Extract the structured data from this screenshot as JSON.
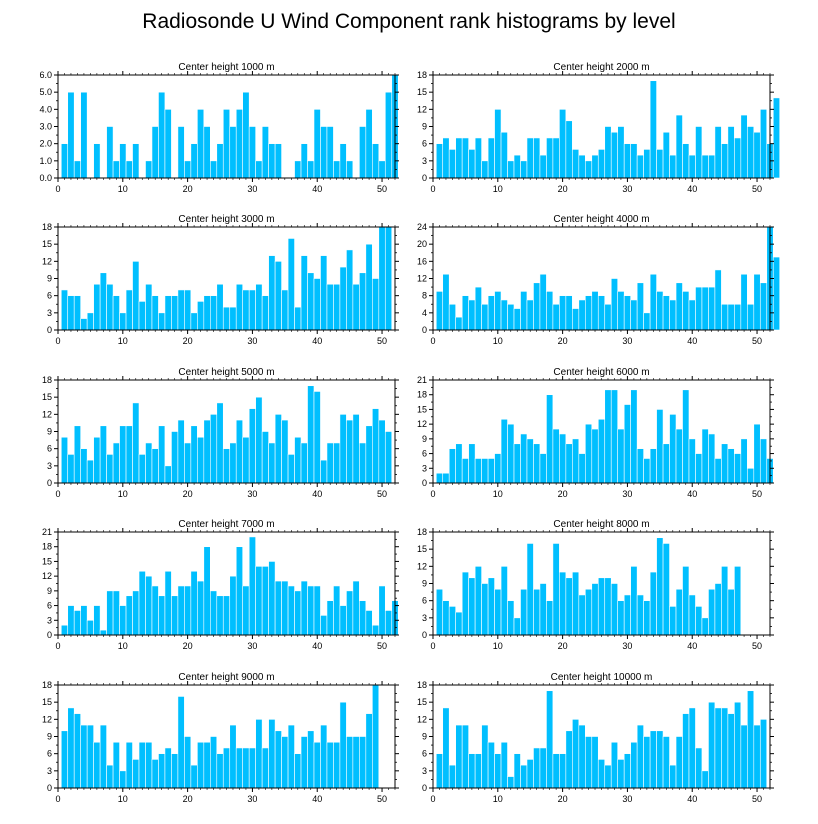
{
  "title": "Radiosonde U Wind Component rank histograms by level",
  "colors": {
    "bar": "#00bfff",
    "bar_edge": "#ffffff",
    "axis": "#000000"
  },
  "chart_data": [
    {
      "type": "bar",
      "title": "Center height 1000 m",
      "xlim": [
        0,
        52
      ],
      "ylim": [
        0,
        6
      ],
      "xticks": [
        0,
        10,
        20,
        30,
        40,
        50
      ],
      "yticks": [
        0,
        1,
        2,
        3,
        4,
        5,
        6
      ],
      "ytick_labels": [
        "0.0",
        "1.0",
        "2.0",
        "3.0",
        "4.0",
        "5.0",
        "6.0"
      ],
      "values": [
        2,
        5,
        1,
        5,
        0,
        2,
        0,
        3,
        1,
        2,
        1,
        2,
        0,
        1,
        3,
        5,
        4,
        0,
        3,
        1,
        2,
        4,
        3,
        1,
        2,
        4,
        3,
        4,
        5,
        3,
        1,
        3,
        2,
        2,
        0,
        0,
        1,
        2,
        1,
        4,
        3,
        3,
        1,
        2,
        1,
        0,
        3,
        4,
        2,
        1,
        5,
        6
      ]
    },
    {
      "type": "bar",
      "title": "Center height 2000 m",
      "xlim": [
        0,
        52
      ],
      "ylim": [
        0,
        18
      ],
      "xticks": [
        0,
        10,
        20,
        30,
        40,
        50
      ],
      "yticks": [
        0,
        3,
        6,
        9,
        12,
        15,
        18
      ],
      "ytick_labels": [
        "0",
        "3",
        "6",
        "9",
        "12",
        "15",
        "18"
      ],
      "values": [
        6,
        7,
        5,
        7,
        7,
        5,
        7,
        3,
        7,
        12,
        8,
        3,
        4,
        3,
        7,
        7,
        4,
        7,
        7,
        12,
        10,
        5,
        4,
        3,
        4,
        5,
        9,
        8,
        9,
        6,
        6,
        4,
        5,
        17,
        5,
        8,
        4,
        11,
        6,
        4,
        9,
        4,
        4,
        9,
        6,
        9,
        7,
        11,
        9,
        8,
        12,
        6,
        14
      ]
    },
    {
      "type": "bar",
      "title": "Center height 3000 m",
      "xlim": [
        0,
        52
      ],
      "ylim": [
        0,
        18
      ],
      "xticks": [
        0,
        10,
        20,
        30,
        40,
        50
      ],
      "yticks": [
        0,
        3,
        6,
        9,
        12,
        15,
        18
      ],
      "ytick_labels": [
        "0",
        "3",
        "6",
        "9",
        "12",
        "15",
        "18"
      ],
      "values": [
        7,
        6,
        6,
        2,
        3,
        8,
        10,
        8,
        6,
        3,
        7,
        12,
        5,
        8,
        6,
        3,
        6,
        6,
        7,
        7,
        3,
        5,
        6,
        6,
        8,
        4,
        4,
        8,
        7,
        7,
        8,
        6,
        13,
        12,
        7,
        16,
        4,
        13,
        10,
        9,
        13,
        8,
        8,
        11,
        14,
        8,
        10,
        15,
        9,
        18,
        18
      ]
    },
    {
      "type": "bar",
      "title": "Center height 4000 m",
      "xlim": [
        0,
        52
      ],
      "ylim": [
        0,
        24
      ],
      "xticks": [
        0,
        10,
        20,
        30,
        40,
        50
      ],
      "yticks": [
        0,
        4,
        8,
        12,
        16,
        20,
        24
      ],
      "ytick_labels": [
        "0",
        "4",
        "8",
        "12",
        "16",
        "20",
        "24"
      ],
      "values": [
        9,
        13,
        6,
        3,
        8,
        7,
        10,
        6,
        8,
        9,
        7,
        6,
        5,
        9,
        7,
        11,
        13,
        9,
        6,
        8,
        8,
        5,
        7,
        8,
        9,
        8,
        6,
        12,
        9,
        8,
        7,
        11,
        4,
        13,
        9,
        8,
        7,
        11,
        9,
        7,
        10,
        10,
        10,
        14,
        6,
        6,
        6,
        13,
        6,
        13,
        11,
        24,
        17
      ]
    },
    {
      "type": "bar",
      "title": "Center height 5000 m",
      "xlim": [
        0,
        52
      ],
      "ylim": [
        0,
        18
      ],
      "xticks": [
        0,
        10,
        20,
        30,
        40,
        50
      ],
      "yticks": [
        0,
        3,
        6,
        9,
        12,
        15,
        18
      ],
      "ytick_labels": [
        "0",
        "3",
        "6",
        "9",
        "12",
        "15",
        "18"
      ],
      "values": [
        8,
        5,
        10,
        6,
        4,
        8,
        10,
        5,
        7,
        10,
        10,
        14,
        5,
        7,
        6,
        10,
        3,
        9,
        11,
        7,
        10,
        8,
        11,
        12,
        14,
        6,
        7,
        11,
        8,
        13,
        15,
        9,
        7,
        12,
        11,
        5,
        8,
        7,
        17,
        16,
        4,
        7,
        7,
        12,
        11,
        12,
        7,
        10,
        13,
        11,
        9
      ]
    },
    {
      "type": "bar",
      "title": "Center height 6000 m",
      "xlim": [
        0,
        52
      ],
      "ylim": [
        0,
        21
      ],
      "xticks": [
        0,
        10,
        20,
        30,
        40,
        50
      ],
      "yticks": [
        0,
        3,
        6,
        9,
        12,
        15,
        18,
        21
      ],
      "ytick_labels": [
        "0",
        "3",
        "6",
        "9",
        "12",
        "15",
        "18",
        "21"
      ],
      "values": [
        2,
        2,
        7,
        8,
        5,
        8,
        5,
        5,
        5,
        6,
        13,
        12,
        8,
        10,
        9,
        8,
        6,
        18,
        11,
        10,
        8,
        9,
        6,
        12,
        11,
        13,
        19,
        19,
        11,
        16,
        19,
        7,
        5,
        7,
        15,
        8,
        14,
        11,
        19,
        9,
        6,
        11,
        10,
        5,
        8,
        7,
        6,
        9,
        3,
        12,
        9,
        5
      ]
    },
    {
      "type": "bar",
      "title": "Center height 7000 m",
      "xlim": [
        0,
        52
      ],
      "ylim": [
        0,
        21
      ],
      "xticks": [
        0,
        10,
        20,
        30,
        40,
        50
      ],
      "yticks": [
        0,
        3,
        6,
        9,
        12,
        15,
        18,
        21
      ],
      "ytick_labels": [
        "0",
        "3",
        "6",
        "9",
        "12",
        "15",
        "18",
        "21"
      ],
      "values": [
        2,
        6,
        5,
        6,
        3,
        6,
        1,
        9,
        9,
        6,
        8,
        9,
        13,
        12,
        10,
        8,
        13,
        8,
        10,
        10,
        13,
        11,
        18,
        9,
        8,
        8,
        12,
        18,
        10,
        20,
        14,
        14,
        15,
        11,
        11,
        10,
        9,
        11,
        10,
        10,
        4,
        7,
        10,
        6,
        9,
        11,
        7,
        5,
        2,
        10,
        5,
        7
      ]
    },
    {
      "type": "bar",
      "title": "Center height 8000 m",
      "xlim": [
        0,
        52
      ],
      "ylim": [
        0,
        18
      ],
      "xticks": [
        0,
        10,
        20,
        30,
        40,
        50
      ],
      "yticks": [
        0,
        3,
        6,
        9,
        12,
        15,
        18
      ],
      "ytick_labels": [
        "0",
        "3",
        "6",
        "9",
        "12",
        "15",
        "18"
      ],
      "values": [
        8,
        6,
        5,
        4,
        11,
        10,
        12,
        9,
        10,
        8,
        12,
        6,
        3,
        8,
        16,
        8,
        9,
        6,
        16,
        11,
        10,
        11,
        7,
        8,
        9,
        10,
        10,
        9,
        6,
        7,
        12,
        7,
        6,
        11,
        17,
        16,
        5,
        8,
        12,
        7,
        5,
        3,
        8,
        9,
        12,
        8,
        12
      ]
    },
    {
      "type": "bar",
      "title": "Center height 9000 m",
      "xlim": [
        0,
        52
      ],
      "ylim": [
        0,
        18
      ],
      "xticks": [
        0,
        10,
        20,
        30,
        40,
        50
      ],
      "yticks": [
        0,
        3,
        6,
        9,
        12,
        15,
        18
      ],
      "ytick_labels": [
        "0",
        "3",
        "6",
        "9",
        "12",
        "15",
        "18"
      ],
      "values": [
        10,
        14,
        13,
        11,
        11,
        8,
        11,
        4,
        8,
        3,
        8,
        5,
        8,
        8,
        5,
        6,
        7,
        6,
        16,
        9,
        4,
        8,
        8,
        9,
        6,
        7,
        11,
        7,
        7,
        7,
        12,
        7,
        12,
        10,
        9,
        11,
        6,
        9,
        10,
        8,
        11,
        8,
        8,
        15,
        9,
        9,
        9,
        13,
        18
      ]
    },
    {
      "type": "bar",
      "title": "Center height 10000 m",
      "xlim": [
        0,
        52
      ],
      "ylim": [
        0,
        18
      ],
      "xticks": [
        0,
        10,
        20,
        30,
        40,
        50
      ],
      "yticks": [
        0,
        3,
        6,
        9,
        12,
        15,
        18
      ],
      "ytick_labels": [
        "0",
        "3",
        "6",
        "9",
        "12",
        "15",
        "18"
      ],
      "values": [
        6,
        14,
        4,
        11,
        11,
        6,
        6,
        11,
        8,
        6,
        8,
        2,
        6,
        4,
        5,
        7,
        7,
        17,
        6,
        6,
        10,
        12,
        11,
        9,
        9,
        5,
        4,
        8,
        5,
        6,
        8,
        11,
        9,
        10,
        10,
        9,
        4,
        9,
        13,
        14,
        7,
        3,
        15,
        14,
        14,
        13,
        15,
        11,
        17,
        11,
        12
      ]
    }
  ]
}
